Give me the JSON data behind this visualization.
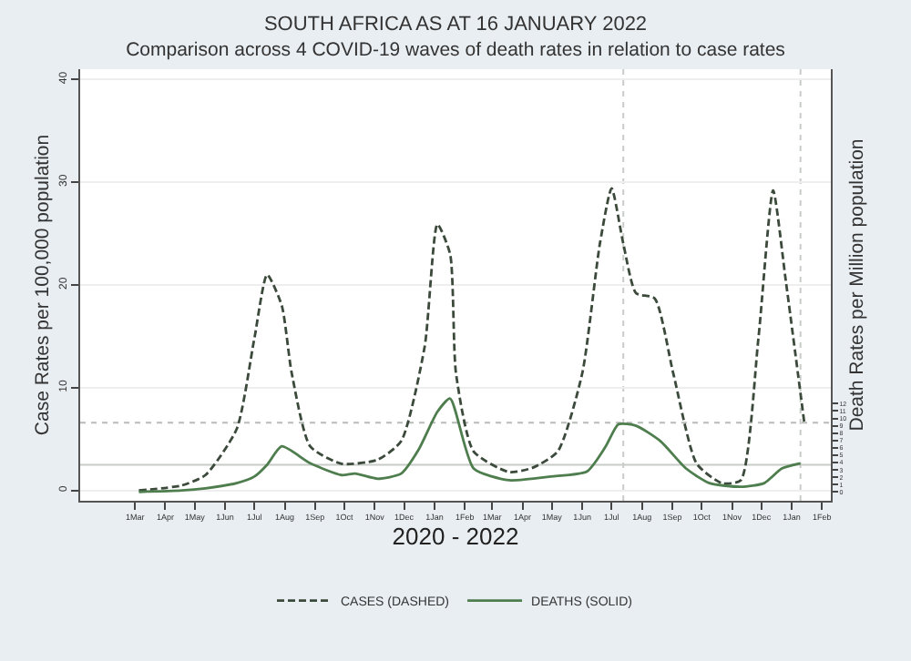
{
  "chart_data": {
    "type": "line",
    "title": "SOUTH AFRICA AS AT 16 JANUARY 2022",
    "subtitle": "Comparison across 4 COVID-19 waves of death rates in relation to case rates",
    "xlabel": "2020 - 2022",
    "ylabel": "Case Rates per 100,000 population",
    "y2label": "Death Rates per Million population",
    "xlim": [
      "2020-01-05",
      "2022-02-10"
    ],
    "xticks": [
      {
        "value": "2020-03-01",
        "label": "1Mar"
      },
      {
        "value": "2020-04-01",
        "label": "1Apr"
      },
      {
        "value": "2020-05-01",
        "label": "1May"
      },
      {
        "value": "2020-06-01",
        "label": "1Jun"
      },
      {
        "value": "2020-07-01",
        "label": "1Jul"
      },
      {
        "value": "2020-08-01",
        "label": "1Aug"
      },
      {
        "value": "2020-09-01",
        "label": "1Sep"
      },
      {
        "value": "2020-10-01",
        "label": "1Oct"
      },
      {
        "value": "2020-11-01",
        "label": "1Nov"
      },
      {
        "value": "2020-12-01",
        "label": "1Dec"
      },
      {
        "value": "2021-01-01",
        "label": "1Jan"
      },
      {
        "value": "2021-02-01",
        "label": "1Feb"
      },
      {
        "value": "2021-03-01",
        "label": "1Mar"
      },
      {
        "value": "2021-04-01",
        "label": "1Apr"
      },
      {
        "value": "2021-05-01",
        "label": "1May"
      },
      {
        "value": "2021-06-01",
        "label": "1Jun"
      },
      {
        "value": "2021-07-01",
        "label": "1Jul"
      },
      {
        "value": "2021-08-01",
        "label": "1Aug"
      },
      {
        "value": "2021-09-01",
        "label": "1Sep"
      },
      {
        "value": "2021-10-01",
        "label": "1Oct"
      },
      {
        "value": "2021-11-01",
        "label": "1Nov"
      },
      {
        "value": "2021-12-01",
        "label": "1Dec"
      },
      {
        "value": "2022-01-01",
        "label": "1Jan"
      },
      {
        "value": "2022-02-01",
        "label": "1Feb"
      }
    ],
    "ylim": [
      -1,
      41
    ],
    "yticks": [
      0,
      10,
      20,
      30,
      40
    ],
    "y2lim": [
      -1.2,
      57.5
    ],
    "y2ticks": [
      0,
      1,
      2,
      3,
      4,
      5,
      6,
      7,
      8,
      9,
      10,
      11,
      12
    ],
    "grid": "y",
    "legend": "bottom",
    "marker": "none",
    "ref_lines": [
      {
        "axis": "y",
        "value": 6.6,
        "color": "#b8bcb8",
        "line_style": "dotted"
      },
      {
        "axis": "y",
        "value": 2.5,
        "color": "#c8ccc8",
        "line_style": "solid"
      },
      {
        "axis": "x",
        "value": "2021-07-13",
        "color": "#c8ccc8",
        "line_style": "dotted"
      },
      {
        "axis": "x",
        "value": "2022-01-10",
        "color": "#c8ccc8",
        "line_style": "dotted"
      }
    ],
    "series": [
      {
        "name": "CASES (DASHED)",
        "color": "#3c4a3c",
        "line_style": "dashed",
        "x": [
          "2020-03-05",
          "2020-04-18",
          "2020-05-12",
          "2020-06-13",
          "2020-07-01",
          "2020-07-14",
          "2020-07-29",
          "2020-08-08",
          "2020-08-27",
          "2020-09-28",
          "2020-11-04",
          "2020-11-28",
          "2020-12-22",
          "2021-01-04",
          "2021-01-17",
          "2021-01-23",
          "2021-02-10",
          "2021-03-18",
          "2021-04-11",
          "2021-05-07",
          "2021-06-01",
          "2021-06-19",
          "2021-07-01",
          "2021-07-13",
          "2021-07-26",
          "2021-08-14",
          "2021-09-02",
          "2021-09-26",
          "2021-10-22",
          "2021-11-10",
          "2021-11-28",
          "2021-12-13",
          "2021-12-26",
          "2022-01-14"
        ],
        "values": [
          0,
          0.5,
          1.5,
          6,
          14.8,
          21,
          18,
          11.5,
          4.3,
          2.6,
          3,
          4.8,
          14,
          25.9,
          23,
          11.4,
          3.8,
          1.8,
          2.2,
          3.8,
          11.4,
          24,
          29.4,
          24,
          19.2,
          18.7,
          11.4,
          2.6,
          0.7,
          1,
          14.8,
          29.2,
          20.4,
          6.5
        ]
      },
      {
        "name": "DEATHS (SOLID)",
        "color": "#4e7d4e",
        "line_style": "solid",
        "axis": "y2",
        "x": [
          "2020-03-05",
          "2020-04-18",
          "2020-05-12",
          "2020-06-13",
          "2020-07-01",
          "2020-07-14",
          "2020-07-29",
          "2020-08-27",
          "2020-09-28",
          "2020-10-12",
          "2020-11-04",
          "2020-11-28",
          "2020-12-16",
          "2021-01-04",
          "2021-01-17",
          "2021-02-10",
          "2021-03-18",
          "2021-04-30",
          "2021-06-06",
          "2021-06-25",
          "2021-07-08",
          "2021-07-26",
          "2021-08-20",
          "2021-09-15",
          "2021-10-09",
          "2021-11-10",
          "2021-12-04",
          "2021-12-22",
          "2022-01-10"
        ],
        "values": [
          0,
          0.2,
          0.5,
          1.2,
          2.1,
          3.7,
          6.2,
          3.9,
          2.3,
          2.5,
          1.8,
          2.5,
          5.8,
          10.9,
          12.7,
          3.2,
          1.6,
          2.1,
          2.8,
          6.2,
          9.2,
          9,
          6.9,
          3.2,
          1.2,
          0.7,
          1.2,
          3.2,
          3.9
        ]
      }
    ]
  }
}
